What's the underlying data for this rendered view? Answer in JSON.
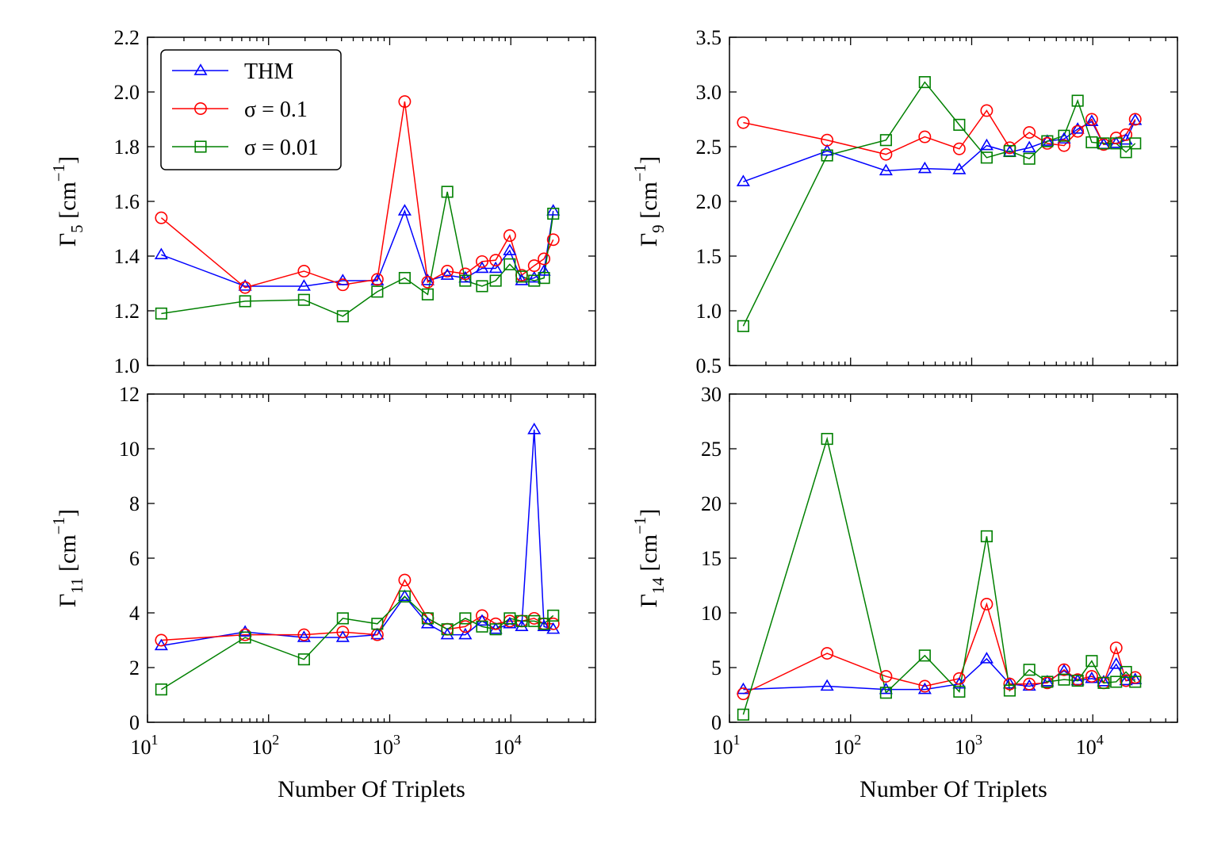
{
  "chart_data": [
    {
      "type": "line",
      "panel": "top-left",
      "xscale": "log",
      "xlim": [
        10,
        50000
      ],
      "ylim": [
        1.0,
        2.2
      ],
      "yticks": [
        1.0,
        1.2,
        1.4,
        1.6,
        1.8,
        2.0,
        2.2
      ],
      "ytick_labels": [
        "1.0",
        "1.2",
        "1.4",
        "1.6",
        "1.8",
        "2.0",
        "2.2"
      ],
      "ylabel": {
        "base": "Γ",
        "sub": "5",
        "unit_open": " [cm",
        "unit_sup": "−1",
        "unit_close": "]"
      },
      "xlabel": "",
      "legend": {
        "placement": "upper-left"
      },
      "x": [
        13,
        64,
        196,
        410,
        790,
        1330,
        2060,
        2990,
        4210,
        5790,
        7500,
        9800,
        12300,
        15600,
        18800,
        22400
      ],
      "series": [
        {
          "name": "THM",
          "color": "#0000ff",
          "marker": "triangle",
          "values": [
            1.405,
            1.29,
            1.29,
            1.31,
            1.31,
            1.565,
            1.31,
            1.33,
            1.32,
            1.355,
            1.355,
            1.42,
            1.31,
            1.32,
            1.345,
            1.565
          ]
        },
        {
          "name": "σ = 0.1",
          "color": "#ff0000",
          "marker": "circle",
          "values": [
            1.54,
            1.285,
            1.345,
            1.295,
            1.315,
            1.965,
            1.305,
            1.345,
            1.335,
            1.38,
            1.385,
            1.475,
            1.33,
            1.365,
            1.39,
            1.46
          ]
        },
        {
          "name": "σ = 0.01",
          "color": "#008000",
          "marker": "square",
          "values": [
            1.19,
            1.235,
            1.24,
            1.18,
            1.27,
            1.32,
            1.26,
            1.635,
            1.31,
            1.29,
            1.31,
            1.37,
            1.325,
            1.31,
            1.32,
            1.555
          ]
        }
      ]
    },
    {
      "type": "line",
      "panel": "top-right",
      "xscale": "log",
      "xlim": [
        10,
        50000
      ],
      "ylim": [
        0.5,
        3.5
      ],
      "yticks": [
        0.5,
        1.0,
        1.5,
        2.0,
        2.5,
        3.0,
        3.5
      ],
      "ytick_labels": [
        "0.5",
        "1.0",
        "1.5",
        "2.0",
        "2.5",
        "3.0",
        "3.5"
      ],
      "ylabel": {
        "base": "Γ",
        "sub": "9",
        "unit_open": " [cm",
        "unit_sup": "−1",
        "unit_close": "]"
      },
      "xlabel": "",
      "x": [
        13,
        64,
        196,
        410,
        790,
        1330,
        2060,
        2990,
        4210,
        5790,
        7500,
        9800,
        12300,
        15600,
        18800,
        22400
      ],
      "series": [
        {
          "name": "THM",
          "color": "#0000ff",
          "marker": "triangle",
          "values": [
            2.18,
            2.46,
            2.28,
            2.3,
            2.29,
            2.51,
            2.45,
            2.49,
            2.55,
            2.57,
            2.66,
            2.73,
            2.52,
            2.53,
            2.56,
            2.74
          ]
        },
        {
          "name": "σ = 0.1",
          "color": "#ff0000",
          "marker": "circle",
          "values": [
            2.72,
            2.56,
            2.43,
            2.59,
            2.48,
            2.83,
            2.49,
            2.63,
            2.53,
            2.51,
            2.64,
            2.75,
            2.52,
            2.58,
            2.61,
            2.75
          ]
        },
        {
          "name": "σ = 0.01",
          "color": "#008000",
          "marker": "square",
          "values": [
            0.86,
            2.42,
            2.56,
            3.09,
            2.7,
            2.4,
            2.46,
            2.39,
            2.55,
            2.6,
            2.92,
            2.54,
            2.53,
            2.53,
            2.45,
            2.53
          ]
        }
      ]
    },
    {
      "type": "line",
      "panel": "bottom-left",
      "xscale": "log",
      "xlim": [
        10,
        50000
      ],
      "ylim": [
        0,
        12
      ],
      "yticks": [
        0,
        2,
        4,
        6,
        8,
        10,
        12
      ],
      "ytick_labels": [
        "0",
        "2",
        "4",
        "6",
        "8",
        "10",
        "12"
      ],
      "xtick_labels": [
        {
          "base": "10",
          "exp": "1",
          "value": 10
        },
        {
          "base": "10",
          "exp": "2",
          "value": 100
        },
        {
          "base": "10",
          "exp": "3",
          "value": 1000
        },
        {
          "base": "10",
          "exp": "4",
          "value": 10000
        }
      ],
      "ylabel": {
        "base": "Γ",
        "sub": "11",
        "unit_open": " [cm",
        "unit_sup": "−1",
        "unit_close": "]"
      },
      "xlabel": "Number Of Triplets",
      "x": [
        13,
        64,
        196,
        410,
        790,
        1330,
        2060,
        2990,
        4210,
        5790,
        7500,
        9800,
        12300,
        15600,
        18800,
        22400
      ],
      "series": [
        {
          "name": "THM",
          "color": "#0000ff",
          "marker": "triangle",
          "values": [
            2.8,
            3.3,
            3.1,
            3.1,
            3.2,
            4.6,
            3.6,
            3.2,
            3.2,
            3.7,
            3.4,
            3.6,
            3.5,
            10.7,
            3.5,
            3.4
          ]
        },
        {
          "name": "σ = 0.1",
          "color": "#ff0000",
          "marker": "circle",
          "values": [
            3.0,
            3.2,
            3.2,
            3.3,
            3.2,
            5.2,
            3.8,
            3.4,
            3.5,
            3.9,
            3.6,
            3.7,
            3.7,
            3.8,
            3.6,
            3.6
          ]
        },
        {
          "name": "σ = 0.01",
          "color": "#008000",
          "marker": "square",
          "values": [
            1.2,
            3.1,
            2.3,
            3.8,
            3.6,
            4.6,
            3.8,
            3.4,
            3.8,
            3.5,
            3.4,
            3.8,
            3.7,
            3.7,
            3.6,
            3.9
          ]
        }
      ]
    },
    {
      "type": "line",
      "panel": "bottom-right",
      "xscale": "log",
      "xlim": [
        10,
        50000
      ],
      "ylim": [
        0,
        30
      ],
      "yticks": [
        0,
        5,
        10,
        15,
        20,
        25,
        30
      ],
      "ytick_labels": [
        "0",
        "5",
        "10",
        "15",
        "20",
        "25",
        "30"
      ],
      "xtick_labels": [
        {
          "base": "10",
          "exp": "1",
          "value": 10
        },
        {
          "base": "10",
          "exp": "2",
          "value": 100
        },
        {
          "base": "10",
          "exp": "3",
          "value": 1000
        },
        {
          "base": "10",
          "exp": "4",
          "value": 10000
        }
      ],
      "ylabel": {
        "base": "Γ",
        "sub": "14",
        "unit_open": " [cm",
        "unit_sup": "−1",
        "unit_close": "]"
      },
      "xlabel": "Number Of Triplets",
      "x": [
        13,
        64,
        196,
        410,
        790,
        1330,
        2060,
        2990,
        4210,
        5790,
        7500,
        9800,
        12300,
        15600,
        18800,
        22400
      ],
      "series": [
        {
          "name": "THM",
          "color": "#0000ff",
          "marker": "triangle",
          "values": [
            3.0,
            3.3,
            3.0,
            3.0,
            3.5,
            5.8,
            3.5,
            3.3,
            3.7,
            4.7,
            3.8,
            4.0,
            3.7,
            5.3,
            3.8,
            3.9
          ]
        },
        {
          "name": "σ = 0.1",
          "color": "#ff0000",
          "marker": "circle",
          "values": [
            2.6,
            6.3,
            4.2,
            3.3,
            4.0,
            10.8,
            3.5,
            3.5,
            3.6,
            4.8,
            3.9,
            4.2,
            3.6,
            6.8,
            3.8,
            4.1
          ]
        },
        {
          "name": "σ = 0.01",
          "color": "#008000",
          "marker": "square",
          "values": [
            0.7,
            25.9,
            2.7,
            6.1,
            2.8,
            17.0,
            2.9,
            4.8,
            3.7,
            3.9,
            3.8,
            5.6,
            3.6,
            3.7,
            4.6,
            3.7
          ]
        }
      ]
    }
  ]
}
